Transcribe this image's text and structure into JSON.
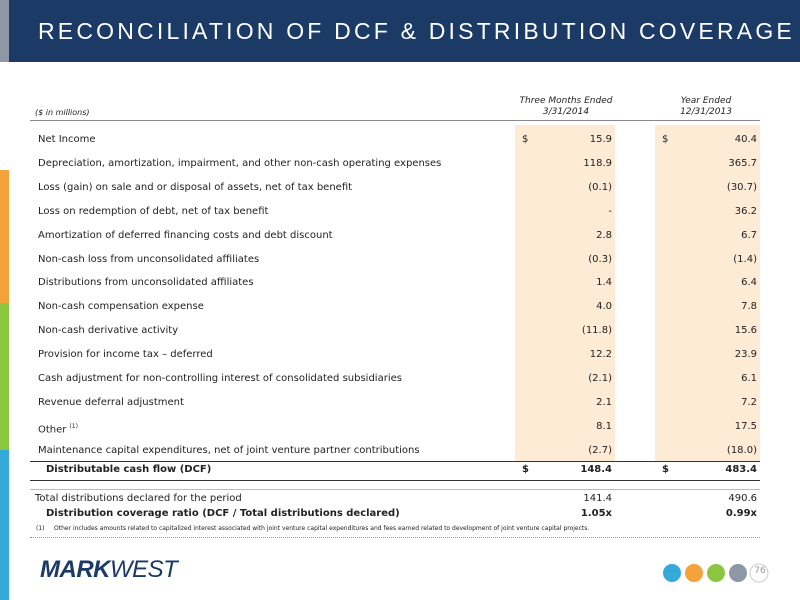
{
  "header": {
    "title": "RECONCILIATION OF DCF & DISTRIBUTION COVERAGE"
  },
  "table": {
    "unit_label": "($ in millions)",
    "columns": [
      {
        "line1": "Three Months Ended",
        "line2": "3/31/2014"
      },
      {
        "line1": "Year Ended",
        "line2": "12/31/2013"
      }
    ],
    "rows": [
      {
        "label": "Net Income",
        "currency": "$",
        "values": [
          "15.9",
          "40.4"
        ]
      },
      {
        "label": "Depreciation, amortization, impairment, and other non-cash operating expenses",
        "values": [
          "118.9",
          "365.7"
        ]
      },
      {
        "label": "Loss (gain) on sale and or disposal of assets, net of tax benefit",
        "values": [
          "(0.1)",
          "(30.7)"
        ]
      },
      {
        "label": "Loss on redemption of debt, net of tax benefit",
        "values": [
          "-",
          "36.2"
        ]
      },
      {
        "label": "Amortization of deferred financing costs and debt discount",
        "values": [
          "2.8",
          "6.7"
        ]
      },
      {
        "label": "Non-cash loss from unconsolidated affiliates",
        "values": [
          "(0.3)",
          "(1.4)"
        ]
      },
      {
        "label": "Distributions from unconsolidated affiliates",
        "values": [
          "1.4",
          "6.4"
        ]
      },
      {
        "label": "Non-cash compensation expense",
        "values": [
          "4.0",
          "7.8"
        ]
      },
      {
        "label": "Non-cash derivative activity",
        "values": [
          "(11.8)",
          "15.6"
        ]
      },
      {
        "label": "Provision for income tax – deferred",
        "values": [
          "12.2",
          "23.9"
        ]
      },
      {
        "label": "Cash adjustment for non-controlling interest of consolidated subsidiaries",
        "values": [
          "(2.1)",
          "6.1"
        ]
      },
      {
        "label": "Revenue deferral adjustment",
        "values": [
          "2.1",
          "7.2"
        ]
      },
      {
        "label": "Other",
        "note": "(1)",
        "values": [
          "8.1",
          "17.5"
        ]
      },
      {
        "label": "Maintenance capital expenditures, net of joint venture partner contributions",
        "values": [
          "(2.7)",
          "(18.0)"
        ]
      }
    ],
    "subtotal": {
      "label": "Distributable cash flow (DCF)",
      "currency": "$",
      "values": [
        "148.4",
        "483.4"
      ]
    },
    "total_distributions": {
      "label": "Total distributions declared for the period",
      "values": [
        "141.4",
        "490.6"
      ]
    },
    "coverage_ratio": {
      "label": "Distribution coverage ratio (DCF / Total distributions declared)",
      "values": [
        "1.05x",
        "0.99x"
      ]
    }
  },
  "footnote": {
    "marker": "(1)",
    "text": "Other includes amounts related to capitalized interest associated with joint venture capital expenditures and fees earned related to development of joint venture capital projects."
  },
  "footer": {
    "logo_bold": "MARK",
    "logo_rest": "WEST",
    "page_number": "76"
  }
}
